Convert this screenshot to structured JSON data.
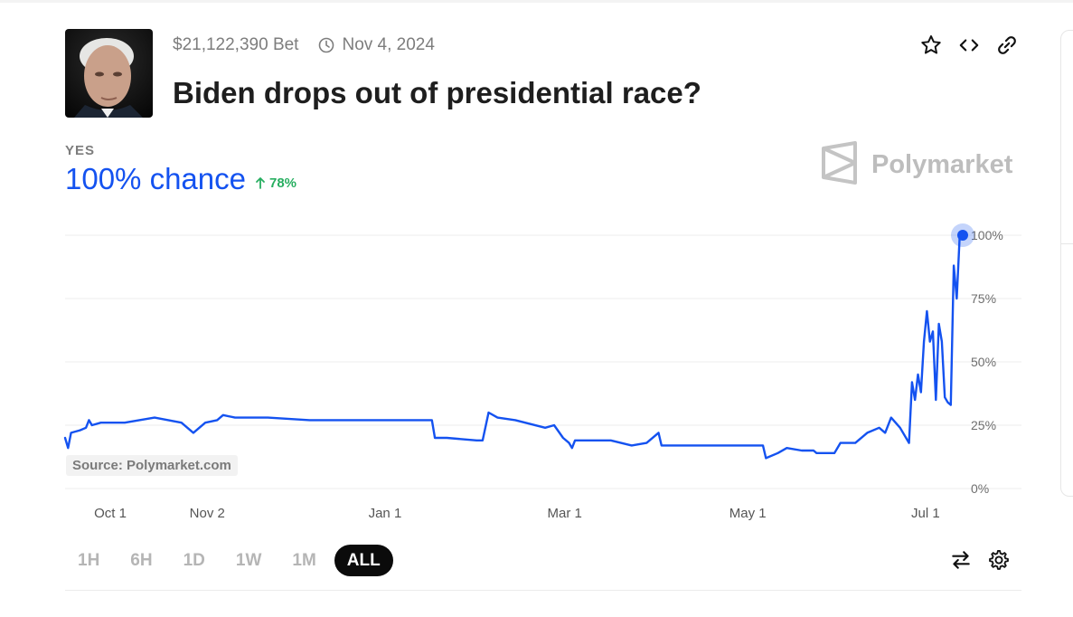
{
  "market": {
    "volume": "$21,122,390 Bet",
    "end_date": "Nov 4, 2024",
    "title": "Biden drops out of presidential race?",
    "outcome_label": "YES",
    "chance": "100% chance",
    "change": "78%",
    "brand": "Polymarket",
    "source": "Source: Polymarket.com"
  },
  "icons": {
    "avatar": "portrait-photo",
    "clock": "clock-icon",
    "favorite": "star-icon",
    "embed": "code-icon",
    "link": "link-icon",
    "delta": "arrow-up-icon",
    "swap": "swap-arrows-icon",
    "settings": "gear-icon"
  },
  "colors": {
    "line": "#1452f0",
    "chance": "#1452f0",
    "change": "#27ae60",
    "grid": "#ededed",
    "active_range_bg": "#0b0b0b"
  },
  "time_ranges": [
    {
      "label": "1H",
      "active": false
    },
    {
      "label": "6H",
      "active": false
    },
    {
      "label": "1D",
      "active": false
    },
    {
      "label": "1W",
      "active": false
    },
    {
      "label": "1M",
      "active": false
    },
    {
      "label": "ALL",
      "active": true
    }
  ],
  "chart_data": {
    "type": "line",
    "title": "",
    "xlabel": "",
    "ylabel": "",
    "ylim": [
      0,
      100
    ],
    "y_ticks": [
      "0%",
      "25%",
      "50%",
      "75%",
      "100%"
    ],
    "y_tick_values": [
      0,
      25,
      50,
      75,
      100
    ],
    "x_ticks": [
      {
        "label": "Oct 1",
        "date": "2023-10-01"
      },
      {
        "label": "Nov 2",
        "date": "2023-11-02"
      },
      {
        "label": "Jan 1",
        "date": "2024-01-01"
      },
      {
        "label": "Mar 1",
        "date": "2024-03-01"
      },
      {
        "label": "May 1",
        "date": "2024-05-01"
      },
      {
        "label": "Jul 1",
        "date": "2024-07-01"
      }
    ],
    "xlim": [
      "2023-09-24",
      "2024-07-21"
    ],
    "grid": true,
    "series": [
      {
        "points": [
          [
            "2023-09-24",
            20
          ],
          [
            "2023-09-25",
            16
          ],
          [
            "2023-09-26",
            22
          ],
          [
            "2023-09-29",
            23
          ],
          [
            "2023-10-01",
            24
          ],
          [
            "2023-10-02",
            27
          ],
          [
            "2023-10-03",
            25
          ],
          [
            "2023-10-06",
            26
          ],
          [
            "2023-10-14",
            26
          ],
          [
            "2023-10-24",
            28
          ],
          [
            "2023-11-02",
            26
          ],
          [
            "2023-11-06",
            22
          ],
          [
            "2023-11-10",
            26
          ],
          [
            "2023-11-14",
            27
          ],
          [
            "2023-11-16",
            29
          ],
          [
            "2023-11-20",
            28
          ],
          [
            "2023-12-01",
            28
          ],
          [
            "2023-12-15",
            27
          ],
          [
            "2023-12-25",
            27
          ],
          [
            "2024-01-01",
            27
          ],
          [
            "2024-01-10",
            27
          ],
          [
            "2024-01-20",
            27
          ],
          [
            "2024-01-25",
            27
          ],
          [
            "2024-01-26",
            20
          ],
          [
            "2024-01-30",
            20
          ],
          [
            "2024-02-09",
            19
          ],
          [
            "2024-02-11",
            19
          ],
          [
            "2024-02-13",
            30
          ],
          [
            "2024-02-16",
            28
          ],
          [
            "2024-02-22",
            27
          ],
          [
            "2024-03-03",
            24
          ],
          [
            "2024-03-06",
            25
          ],
          [
            "2024-03-09",
            20
          ],
          [
            "2024-03-11",
            18
          ],
          [
            "2024-03-12",
            16
          ],
          [
            "2024-03-13",
            19
          ],
          [
            "2024-03-25",
            19
          ],
          [
            "2024-04-01",
            17
          ],
          [
            "2024-04-06",
            18
          ],
          [
            "2024-04-10",
            22
          ],
          [
            "2024-04-11",
            17
          ],
          [
            "2024-04-20",
            17
          ],
          [
            "2024-04-30",
            17
          ],
          [
            "2024-05-10",
            17
          ],
          [
            "2024-05-15",
            17
          ],
          [
            "2024-05-16",
            12
          ],
          [
            "2024-05-20",
            14
          ],
          [
            "2024-05-23",
            16
          ],
          [
            "2024-05-28",
            15
          ],
          [
            "2024-06-01",
            15
          ],
          [
            "2024-06-02",
            14
          ],
          [
            "2024-06-08",
            14
          ],
          [
            "2024-06-10",
            18
          ],
          [
            "2024-06-15",
            18
          ],
          [
            "2024-06-19",
            22
          ],
          [
            "2024-06-23",
            24
          ],
          [
            "2024-06-25",
            22
          ],
          [
            "2024-06-27",
            28
          ],
          [
            "2024-06-30",
            24
          ],
          [
            "2024-07-03",
            18
          ],
          [
            "2024-07-04",
            42
          ],
          [
            "2024-07-05",
            35
          ],
          [
            "2024-07-06",
            45
          ],
          [
            "2024-07-07",
            38
          ],
          [
            "2024-07-08",
            58
          ],
          [
            "2024-07-09",
            70
          ],
          [
            "2024-07-10",
            58
          ],
          [
            "2024-07-11",
            62
          ],
          [
            "2024-07-12",
            35
          ],
          [
            "2024-07-13",
            65
          ],
          [
            "2024-07-14",
            58
          ],
          [
            "2024-07-15",
            36
          ],
          [
            "2024-07-16",
            34
          ],
          [
            "2024-07-17",
            33
          ],
          [
            "2024-07-18",
            88
          ],
          [
            "2024-07-19",
            75
          ],
          [
            "2024-07-20",
            100
          ],
          [
            "2024-07-21",
            100
          ]
        ]
      }
    ]
  }
}
